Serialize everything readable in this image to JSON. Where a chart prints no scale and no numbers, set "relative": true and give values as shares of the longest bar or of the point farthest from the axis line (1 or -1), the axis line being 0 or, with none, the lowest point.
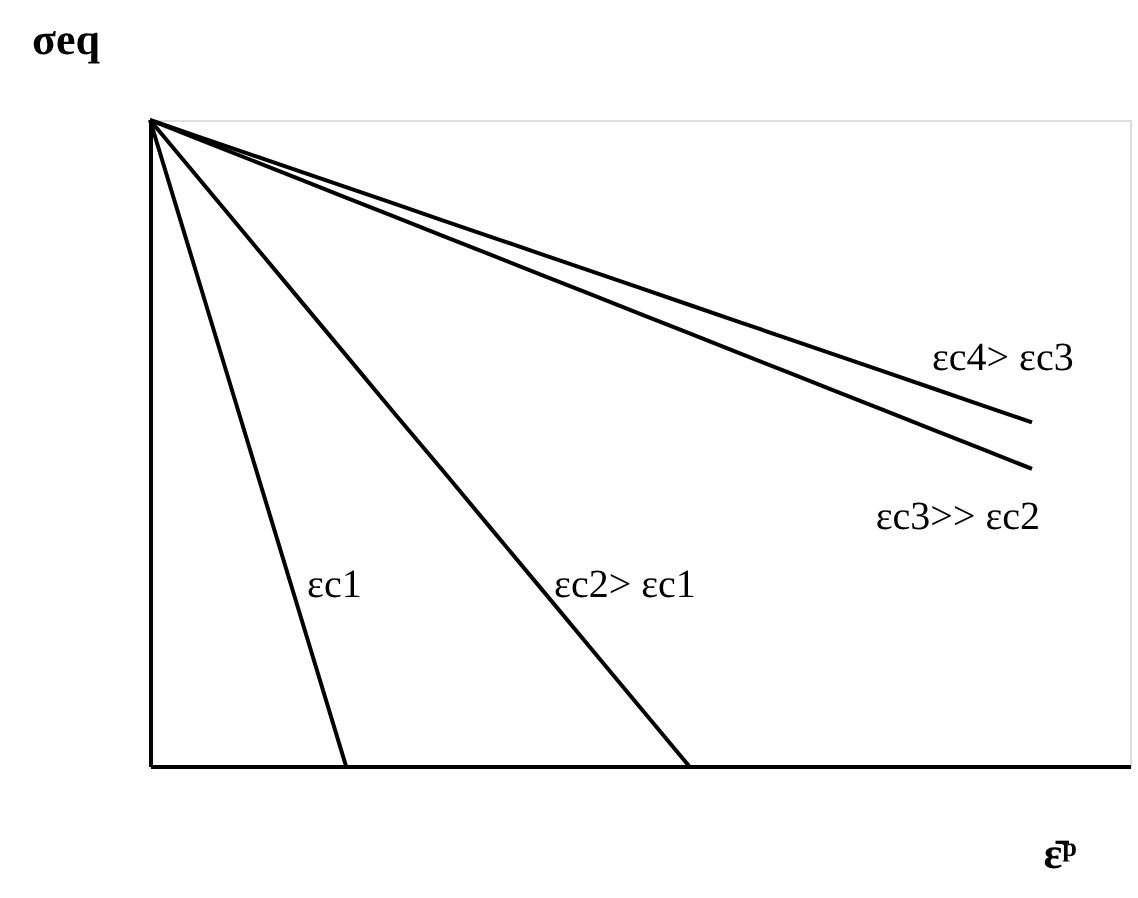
{
  "chart_data": {
    "type": "line",
    "relative": true,
    "xlabel": "ε̄ᵖ",
    "ylabel": "σeq",
    "grid": false,
    "marker": "none",
    "line_style": "solid",
    "categories": [
      null,
      null,
      null,
      null,
      null,
      null,
      null,
      null,
      null,
      null,
      null,
      null,
      null,
      null,
      null,
      null,
      null,
      null,
      null,
      null,
      null
    ],
    "series": [
      {
        "name": "εc1",
        "color": "#000000",
        "values": [
          1,
          0.75,
          0.5,
          0.25,
          0,
          null,
          null,
          null,
          null,
          null,
          null,
          null,
          null,
          null,
          null,
          null,
          null,
          null,
          null,
          null,
          null
        ]
      },
      {
        "name": "εc2> εc1",
        "color": "#000000",
        "values": [
          1,
          0.909,
          0.818,
          0.727,
          0.636,
          0.545,
          0.455,
          0.364,
          0.273,
          0.182,
          0.091,
          0,
          null,
          null,
          null,
          null,
          null,
          null,
          null,
          null,
          null
        ]
      },
      {
        "name": "εc3>> εc2",
        "color": "#000000",
        "values": [
          1,
          0.97,
          0.94,
          0.91,
          0.88,
          0.85,
          0.82,
          0.79,
          0.76,
          0.73,
          0.7,
          0.67,
          0.64,
          0.61,
          0.58,
          0.55,
          0.52,
          0.49,
          0.46,
          null,
          null
        ]
      },
      {
        "name": "εc4> εc3",
        "color": "#000000",
        "values": [
          1,
          0.974,
          0.948,
          0.922,
          0.896,
          0.87,
          0.844,
          0.818,
          0.792,
          0.766,
          0.74,
          0.714,
          0.688,
          0.662,
          0.636,
          0.61,
          0.584,
          0.558,
          0.532,
          null,
          null
        ]
      }
    ]
  }
}
